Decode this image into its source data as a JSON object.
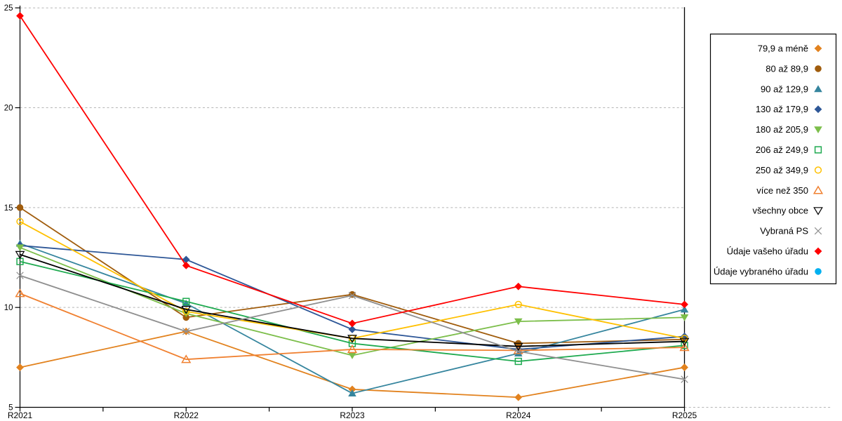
{
  "chart_data": {
    "type": "line",
    "title": "",
    "xlabel": "",
    "ylabel": "",
    "x_categories": [
      "R2021",
      "R2022",
      "R2023",
      "R2024",
      "R2025"
    ],
    "y_ticks": [
      5,
      10,
      15,
      20,
      25
    ],
    "ylim": [
      5,
      25
    ],
    "grid": "horizontal-dashed",
    "legend_position": "right",
    "series": [
      {
        "name": "79,9 a méně",
        "color": "#E2821E",
        "marker": "diamond",
        "fill": "filled",
        "values": [
          7.0,
          8.8,
          5.9,
          5.5,
          7.0
        ]
      },
      {
        "name": "80 až 89,9",
        "color": "#A05C0C",
        "marker": "circle",
        "fill": "filled",
        "values": [
          15.0,
          9.5,
          10.65,
          8.2,
          8.4
        ]
      },
      {
        "name": "90 až 129,9",
        "color": "#35859E",
        "marker": "triangle-up",
        "fill": "filled",
        "values": [
          13.2,
          10.2,
          5.7,
          7.7,
          9.9
        ]
      },
      {
        "name": "130 až 179,9",
        "color": "#2E5797",
        "marker": "diamond",
        "fill": "filled",
        "values": [
          13.1,
          12.4,
          8.9,
          7.9,
          8.55
        ]
      },
      {
        "name": "180 až 205,9",
        "color": "#7CBE4A",
        "marker": "triangle-down",
        "fill": "filled",
        "values": [
          13.0,
          9.7,
          7.6,
          9.3,
          9.5
        ]
      },
      {
        "name": "206 až 249,9",
        "color": "#1FAA50",
        "marker": "square",
        "fill": "open",
        "values": [
          12.3,
          10.3,
          8.2,
          7.3,
          8.1
        ]
      },
      {
        "name": "250 až 349,9",
        "color": "#FFC000",
        "marker": "circle",
        "fill": "open",
        "values": [
          14.3,
          9.8,
          8.45,
          10.15,
          8.45
        ]
      },
      {
        "name": "více než 350",
        "color": "#F08030",
        "marker": "triangle-up",
        "fill": "open",
        "values": [
          10.7,
          7.4,
          7.9,
          7.85,
          8.0
        ]
      },
      {
        "name": "všechny obce",
        "color": "#000000",
        "marker": "triangle-down",
        "fill": "open",
        "values": [
          12.65,
          9.9,
          8.45,
          8.05,
          8.3
        ]
      },
      {
        "name": "Vybraná PS",
        "color": "#8F8F8F",
        "marker": "x",
        "fill": "open",
        "values": [
          11.6,
          8.8,
          10.6,
          7.8,
          6.4
        ]
      },
      {
        "name": "Údaje vašeho úřadu",
        "color": "#FF0000",
        "marker": "diamond",
        "fill": "filled",
        "values": [
          24.6,
          12.1,
          9.2,
          11.05,
          10.15
        ]
      },
      {
        "name": "Údaje vybraného úřadu",
        "color": "#00B0F0",
        "marker": "circle",
        "fill": "filled",
        "values": []
      }
    ]
  }
}
